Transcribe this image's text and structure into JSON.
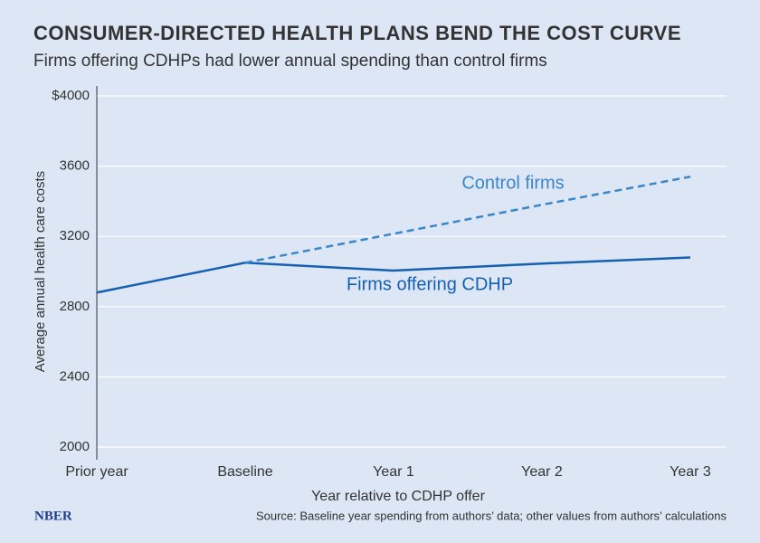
{
  "chart_data": {
    "type": "line",
    "title": "CONSUMER-DIRECTED HEALTH PLANS BEND THE COST CURVE",
    "subtitle": "Firms offering CDHPs had lower annual spending than control firms",
    "x_label": "Year relative to CDHP offer",
    "y_label": "Average annual health care costs",
    "categories": [
      "Prior year",
      "Baseline",
      "Year 1",
      "Year 2",
      "Year 3"
    ],
    "series": [
      {
        "name": "Firms offering CDHP",
        "color": "#1560b0",
        "dashed": false,
        "values": [
          2880,
          3050,
          3005,
          3045,
          3080
        ]
      },
      {
        "name": "Control firms",
        "color": "#3a86c8",
        "dashed": true,
        "values": [
          null,
          3050,
          3215,
          3380,
          3540
        ]
      }
    ],
    "ylim": [
      2000,
      4000
    ],
    "yticks": [
      2000,
      2400,
      2800,
      3200,
      3600,
      {
        "value": 4000,
        "label": "$4000"
      }
    ],
    "grid": true,
    "source": "Source: Baseline year spending from authors’ data;  other values from authors’ calculations",
    "logo": "NBER"
  }
}
